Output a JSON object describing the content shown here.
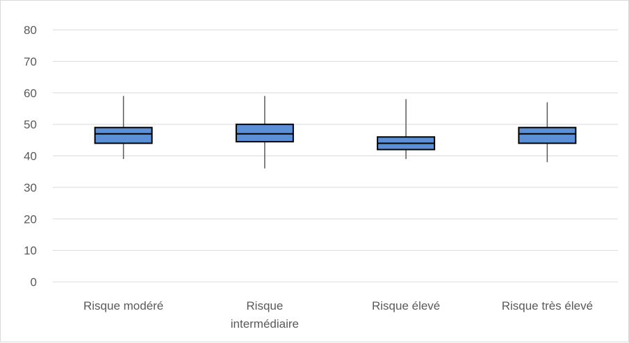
{
  "chart_data": {
    "type": "boxplot",
    "title": "",
    "xlabel": "",
    "ylabel": "",
    "ylim": [
      0,
      80
    ],
    "yticks": [
      0,
      10,
      20,
      30,
      40,
      50,
      60,
      70,
      80
    ],
    "grid": true,
    "legend": "none",
    "categories": [
      [
        "Risque modéré"
      ],
      [
        "Risque",
        "intermédiaire"
      ],
      [
        "Risque élevé"
      ],
      [
        "Risque très élevé"
      ]
    ],
    "boxes": [
      {
        "min": 39,
        "q1": 44,
        "median": 47,
        "q3": 49,
        "max": 59
      },
      {
        "min": 36,
        "q1": 44.5,
        "median": 47,
        "q3": 50,
        "max": 59
      },
      {
        "min": 39,
        "q1": 42,
        "median": 44,
        "q3": 46,
        "max": 58
      },
      {
        "min": 38,
        "q1": 44,
        "median": 47,
        "q3": 49,
        "max": 57
      }
    ],
    "colors": {
      "box_fill": "#5b8fd6",
      "box_stroke": "#000000",
      "whisker": "#595959",
      "grid": "#d9d9d9",
      "text": "#595959"
    }
  }
}
